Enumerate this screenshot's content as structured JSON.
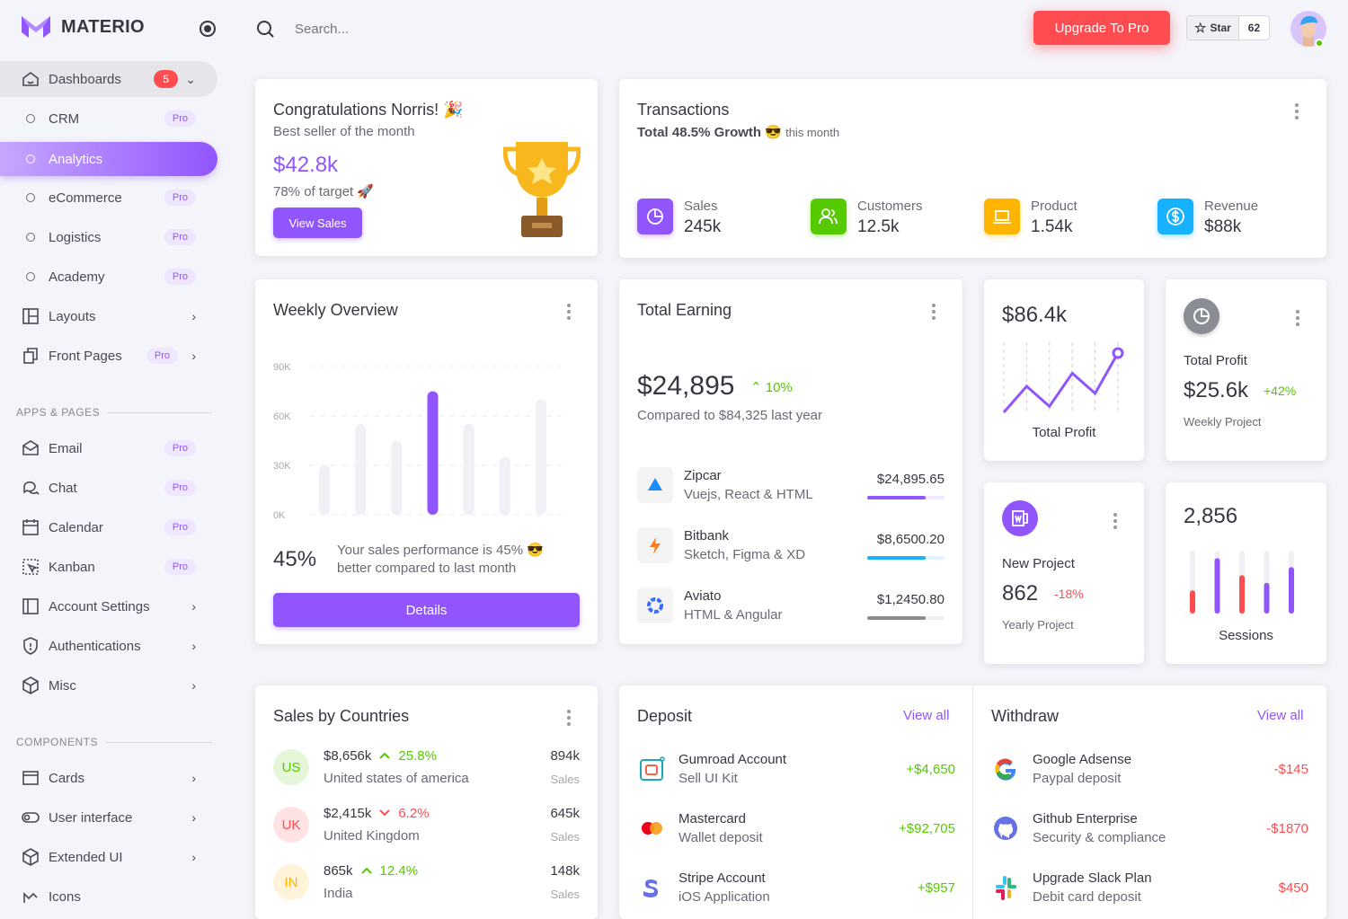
{
  "brand": {
    "name": "MATERIO",
    "accent": "#9155fd"
  },
  "search": {
    "placeholder": "Search..."
  },
  "github": {
    "star_label": "Star",
    "count": "62"
  },
  "sidebar": {
    "dashboards": {
      "label": "Dashboards",
      "badge": "5"
    },
    "dash_items": [
      {
        "label": "CRM",
        "pro": "Pro"
      },
      {
        "label": "Analytics",
        "active": true
      },
      {
        "label": "eCommerce",
        "pro": "Pro"
      },
      {
        "label": "Logistics",
        "pro": "Pro"
      },
      {
        "label": "Academy",
        "pro": "Pro"
      }
    ],
    "layouts": "Layouts",
    "front_pages": {
      "label": "Front Pages",
      "pro": "Pro"
    },
    "apps_section": "APPS & PAGES",
    "apps": [
      {
        "label": "Email",
        "pro": "Pro"
      },
      {
        "label": "Chat",
        "pro": "Pro"
      },
      {
        "label": "Calendar",
        "pro": "Pro"
      },
      {
        "label": "Kanban",
        "pro": "Pro"
      },
      {
        "label": "Account Settings"
      },
      {
        "label": "Authentications"
      },
      {
        "label": "Misc"
      }
    ],
    "components_section": "COMPONENTS",
    "components": [
      {
        "label": "Cards"
      },
      {
        "label": "User interface"
      },
      {
        "label": "Extended UI"
      },
      {
        "label": "Icons"
      }
    ]
  },
  "congrats": {
    "title": "Congratulations Norris! 🎉",
    "subtitle": "Best seller of the month",
    "amount": "$42.8k",
    "target": "78% of target 🚀",
    "button": "View Sales"
  },
  "transactions": {
    "title": "Transactions",
    "growth": "Total 48.5% Growth 😎",
    "period": "this month",
    "stats": [
      {
        "label": "Sales",
        "value": "245k",
        "color": "#9155fd",
        "icon": "pie-chart-icon"
      },
      {
        "label": "Customers",
        "value": "12.5k",
        "color": "#56ca00",
        "icon": "users-icon"
      },
      {
        "label": "Product",
        "value": "1.54k",
        "color": "#ffb400",
        "icon": "laptop-icon"
      },
      {
        "label": "Revenue",
        "value": "$88k",
        "color": "#16b1ff",
        "icon": "dollar-icon"
      }
    ]
  },
  "weekly": {
    "title": "Weekly Overview",
    "percent": "45%",
    "text": "Your sales performance is 45% 😎 better compared to last month",
    "button": "Details",
    "chart_data": {
      "type": "bar",
      "yticks": [
        "90K",
        "60K",
        "30K",
        "0K"
      ],
      "ylim": [
        0,
        90
      ],
      "values": [
        30,
        55,
        45,
        75,
        55,
        35,
        70
      ],
      "highlight_index": 3,
      "grid": true
    }
  },
  "earning": {
    "title": "Total Earning",
    "amount": "$24,895",
    "change": "10%",
    "compare": "Compared to $84,325 last year",
    "items": [
      {
        "name": "Zipcar",
        "sub": "Vuejs, React & HTML",
        "amount": "$24,895.65",
        "progress": 0.75,
        "color": "#9155fd",
        "track": "#efe7ff"
      },
      {
        "name": "Bitbank",
        "sub": "Sketch, Figma & XD",
        "amount": "$8,6500.20",
        "progress": 0.75,
        "color": "#16b1ff",
        "track": "#dff4ff"
      },
      {
        "name": "Aviato",
        "sub": "HTML & Angular",
        "amount": "$1,2450.80",
        "progress": 0.75,
        "color": "#8a8d93",
        "track": "#eeeeef"
      }
    ]
  },
  "profit_chart": {
    "amount": "$86.4k",
    "label": "Total Profit",
    "chart_data": {
      "type": "line",
      "values": [
        0,
        44,
        10,
        66,
        32,
        100
      ]
    }
  },
  "total_profit": {
    "title": "Total Profit",
    "amount": "$25.6k",
    "change": "+42%",
    "sub": "Weekly Project"
  },
  "new_project": {
    "title": "New Project",
    "amount": "862",
    "change": "-18%",
    "sub": "Yearly Project"
  },
  "sessions": {
    "amount": "2,856",
    "label": "Sessions",
    "chart_data": {
      "type": "bar",
      "values": [
        0.37,
        0.88,
        0.61,
        0.49,
        0.74
      ],
      "colors": [
        "#ff4c51",
        "#9155fd",
        "#ff4c51",
        "#9155fd",
        "#9155fd"
      ]
    }
  },
  "countries": {
    "title": "Sales by Countries",
    "rows": [
      {
        "code": "US",
        "amount": "$8,656k",
        "trend": "up",
        "change": "25.8%",
        "name": "United states of america",
        "sales": "894k",
        "sales_label": "Sales",
        "bg": "#e6f7d9",
        "fg": "#56ca00"
      },
      {
        "code": "UK",
        "amount": "$2,415k",
        "trend": "down",
        "change": "6.2%",
        "name": "United Kingdom",
        "sales": "645k",
        "sales_label": "Sales",
        "bg": "#ffe2e3",
        "fg": "#ff4c51"
      },
      {
        "code": "IN",
        "amount": "865k",
        "trend": "up",
        "change": "12.4%",
        "name": "India",
        "sales": "148k",
        "sales_label": "Sales",
        "bg": "#fff3d9",
        "fg": "#ffb400"
      }
    ]
  },
  "deposit": {
    "title": "Deposit",
    "view_all": "View all",
    "rows": [
      {
        "name": "Gumroad Account",
        "sub": "Sell UI Kit",
        "amount": "+$4,650"
      },
      {
        "name": "Mastercard",
        "sub": "Wallet deposit",
        "amount": "+$92,705"
      },
      {
        "name": "Stripe Account",
        "sub": "iOS Application",
        "amount": "+$957"
      }
    ]
  },
  "withdraw": {
    "title": "Withdraw",
    "view_all": "View all",
    "rows": [
      {
        "name": "Google Adsense",
        "sub": "Paypal deposit",
        "amount": "-$145"
      },
      {
        "name": "Github Enterprise",
        "sub": "Security & compliance",
        "amount": "-$1870"
      },
      {
        "name": "Upgrade Slack Plan",
        "sub": "Debit card deposit",
        "amount": "$450"
      }
    ]
  },
  "upgrade_button": "Upgrade To Pro"
}
